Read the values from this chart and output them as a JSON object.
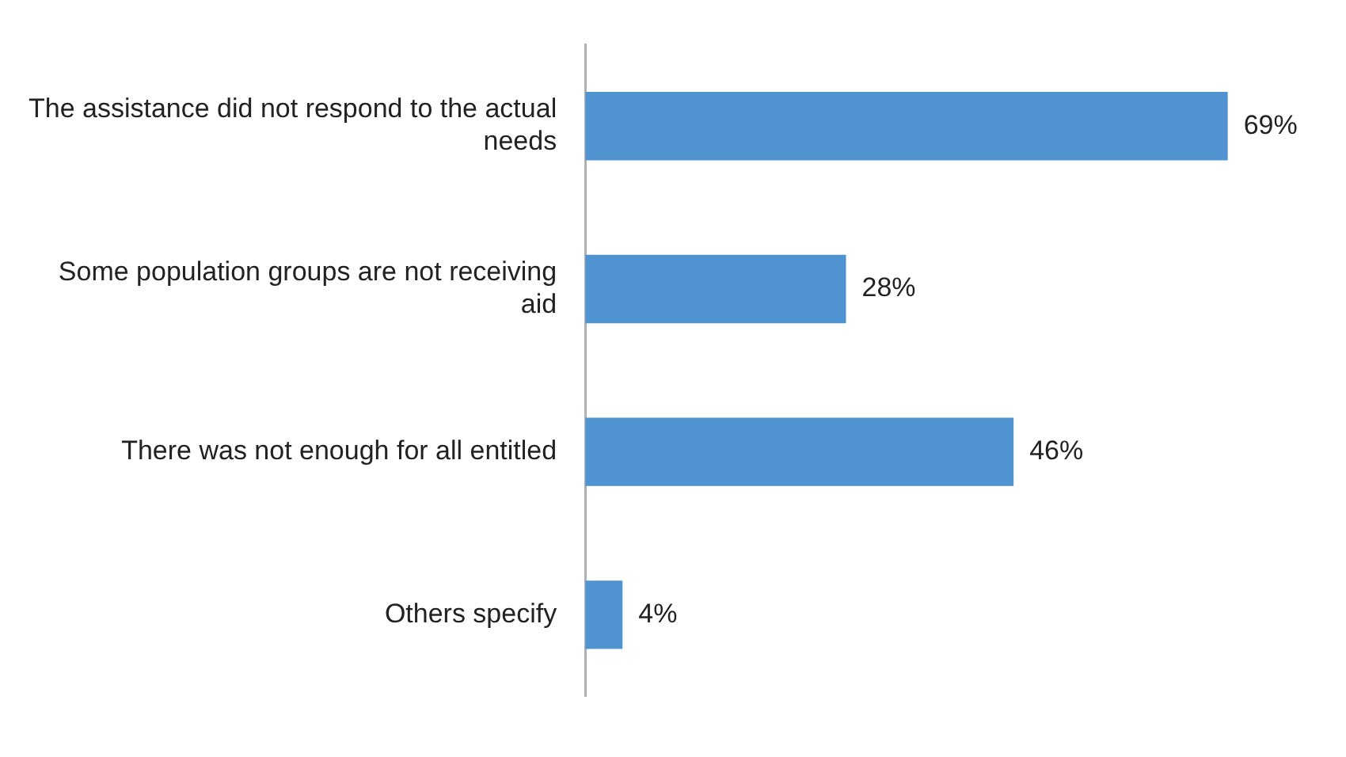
{
  "chart_data": {
    "type": "bar",
    "orientation": "horizontal",
    "categories": [
      "The assistance did not respond to the actual needs",
      "Some population groups are not receiving aid",
      "There was not enough for all entitled",
      "Others specify"
    ],
    "values": [
      69,
      28,
      46,
      4
    ],
    "color": "#4f93d0",
    "value_labels": [
      "69%",
      "28%",
      "46%",
      "4%"
    ],
    "tick_labels": "y",
    "legend": false
  }
}
